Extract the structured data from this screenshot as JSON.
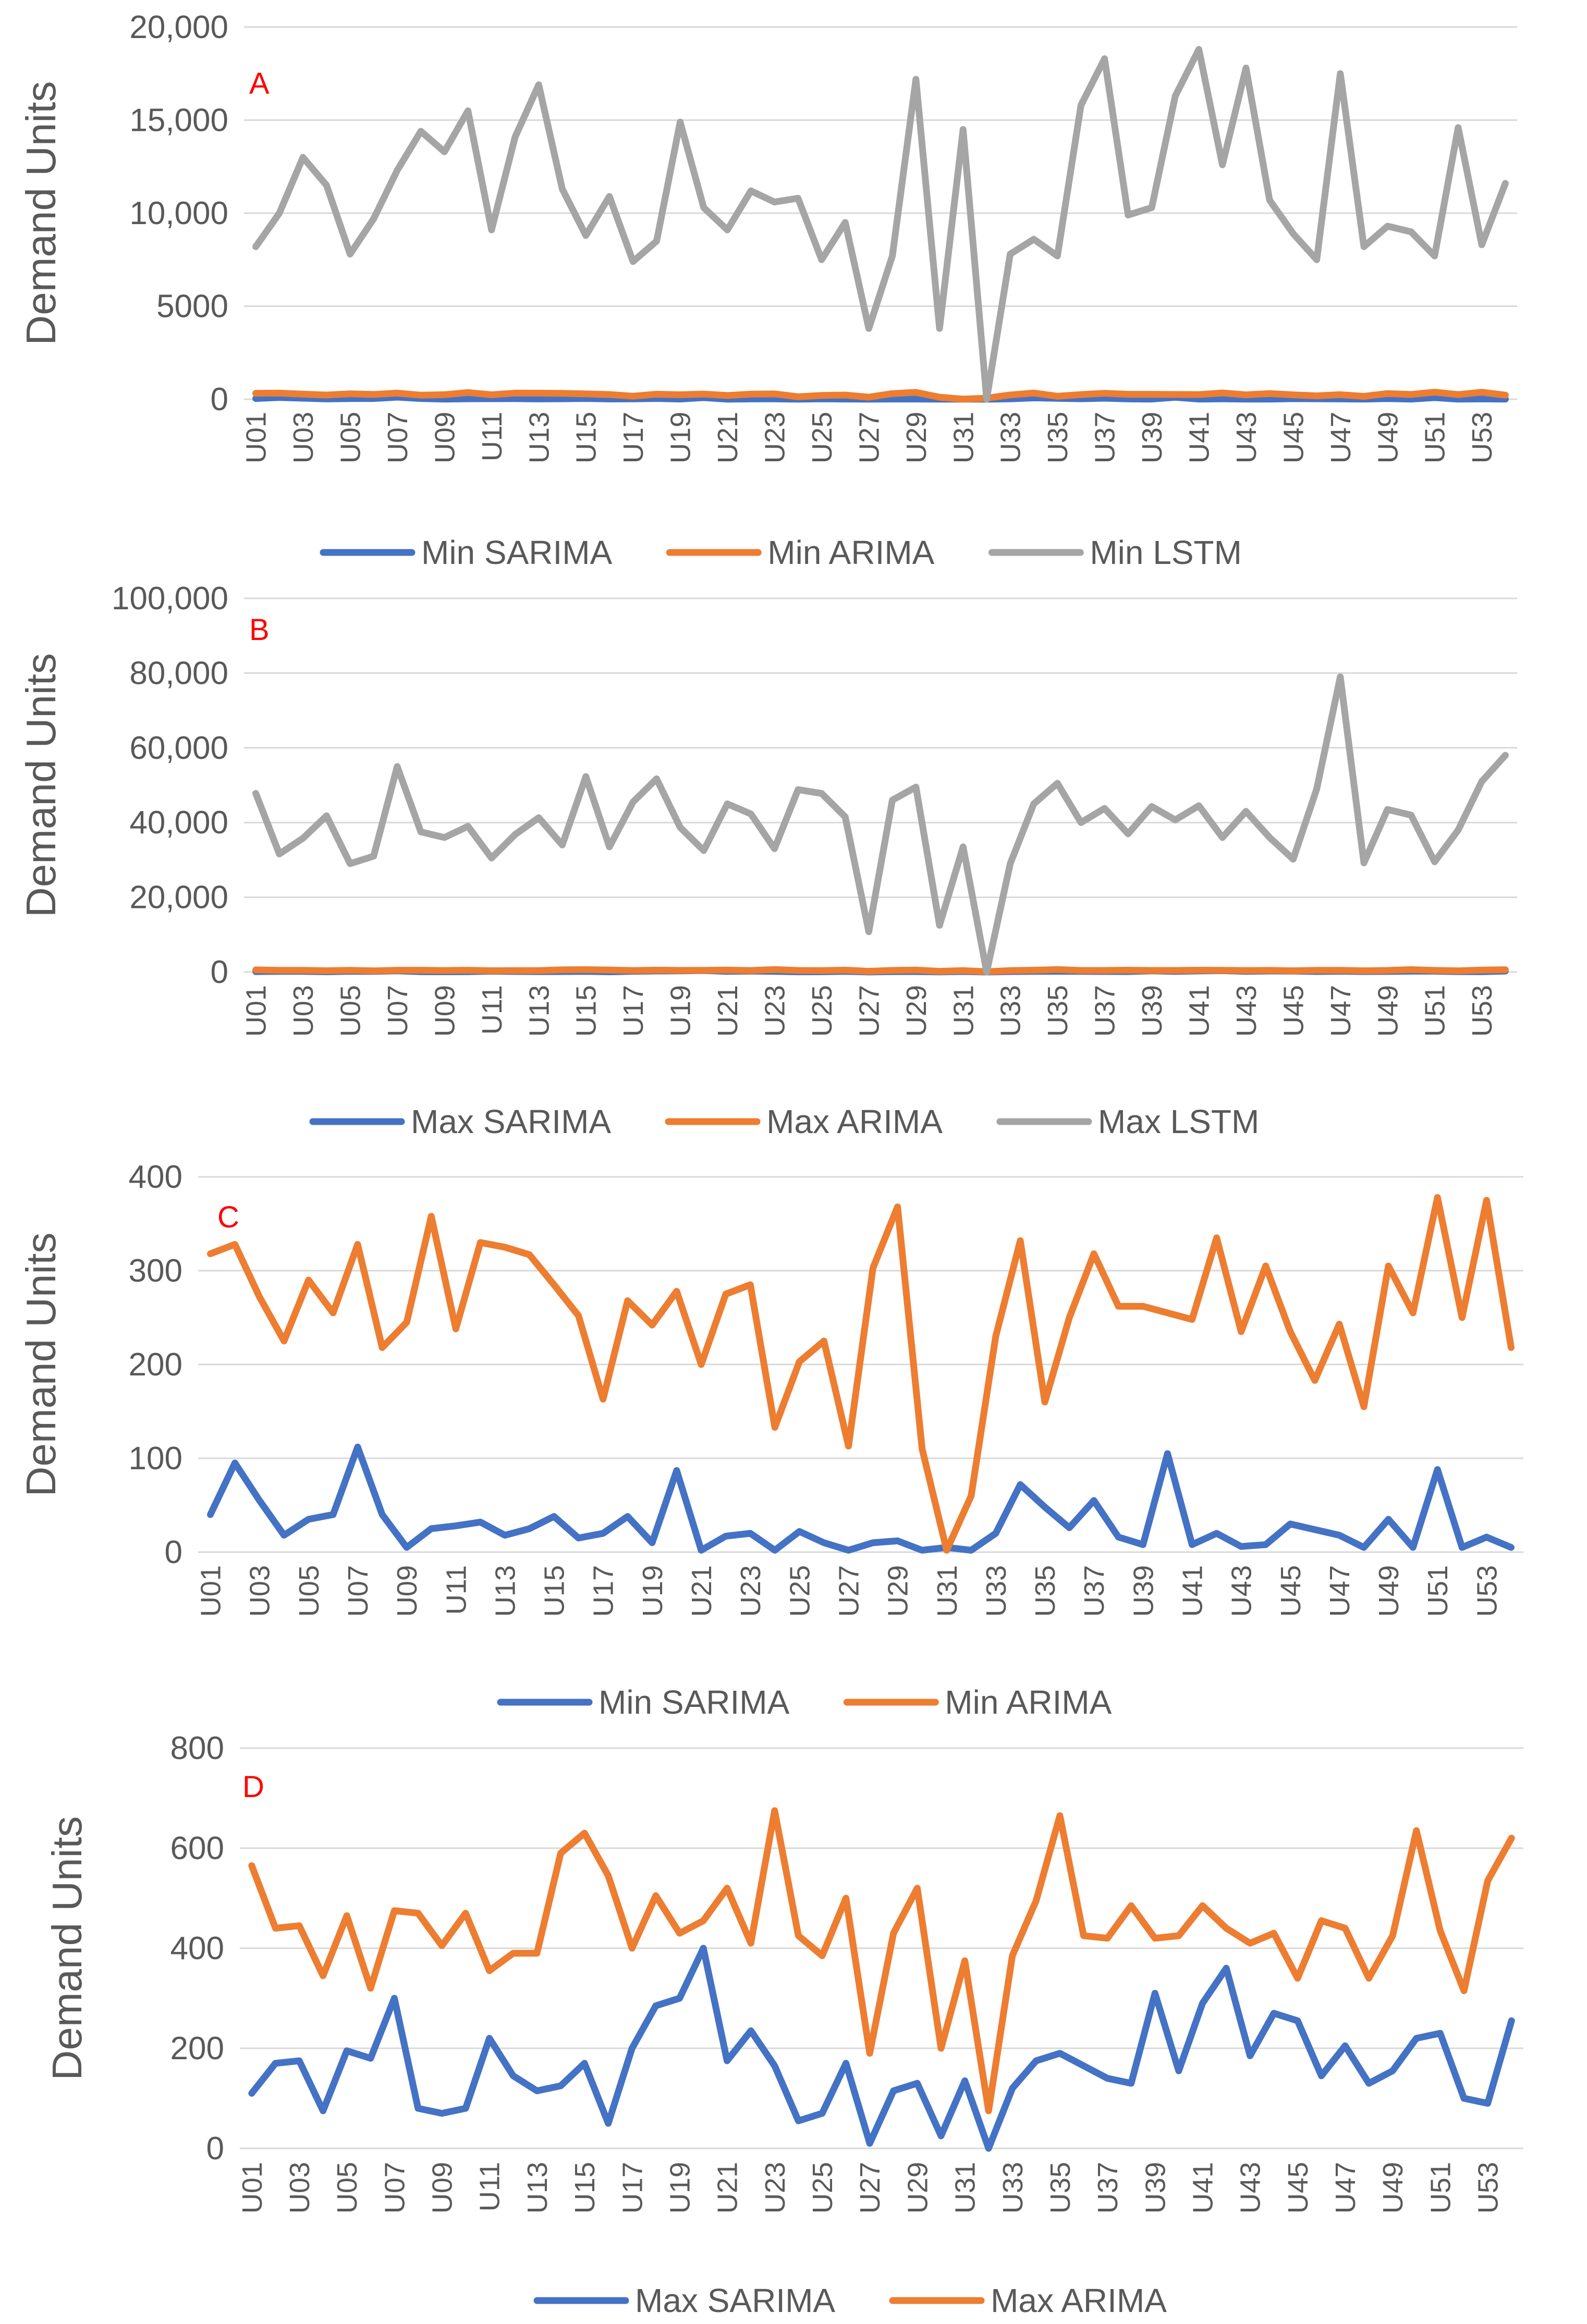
{
  "colors": {
    "sarima": "#4472c4",
    "arima": "#ed7d31",
    "lstm": "#a5a5a5",
    "panel_letter": "#ff0000",
    "grid": "#d9d9d9",
    "text": "#595959"
  },
  "chart_data": [
    {
      "type": "line",
      "panel": "A",
      "ylabel": "Demand Units",
      "ylim": [
        0,
        20000
      ],
      "yticks": [
        0,
        5000,
        10000,
        15000,
        20000
      ],
      "ytick_labels": [
        "0",
        "5000",
        "10,000",
        "15,000",
        "20,000"
      ],
      "categories": [
        "U01",
        "U02",
        "U03",
        "U04",
        "U05",
        "U06",
        "U07",
        "U08",
        "U09",
        "U10",
        "U11",
        "U12",
        "U13",
        "U14",
        "U15",
        "U16",
        "U17",
        "U18",
        "U19",
        "U20",
        "U21",
        "U22",
        "U23",
        "U24",
        "U25",
        "U26",
        "U27",
        "U28",
        "U29",
        "U30",
        "U31",
        "U32",
        "U33",
        "U34",
        "U35",
        "U36",
        "U37",
        "U38",
        "U39",
        "U40",
        "U41",
        "U42",
        "U43",
        "U44",
        "U45",
        "U46",
        "U47",
        "U48",
        "U49",
        "U50",
        "U51",
        "U52",
        "U53",
        "U54"
      ],
      "x_tick_labels": [
        "U01",
        "U03",
        "U05",
        "U07",
        "U09",
        "U11",
        "U13",
        "U15",
        "U17",
        "U19",
        "U21",
        "U23",
        "U25",
        "U27",
        "U29",
        "U31",
        "U33",
        "U35",
        "U37",
        "U39",
        "U41",
        "U43",
        "U45",
        "U47",
        "U49",
        "U51",
        "U53"
      ],
      "series": [
        {
          "name": "Min SARIMA",
          "color": "#4472c4",
          "values": [
            40,
            95,
            55,
            18,
            35,
            40,
            112,
            40,
            5,
            25,
            28,
            32,
            18,
            25,
            38,
            15,
            20,
            38,
            10,
            87,
            2,
            17,
            20,
            2,
            22,
            10,
            2,
            10,
            12,
            2,
            5,
            2,
            20,
            72,
            48,
            26,
            55,
            16,
            8,
            105,
            8,
            20,
            6,
            8,
            30,
            24,
            18,
            5,
            35,
            5,
            88,
            5,
            16,
            5
          ]
        },
        {
          "name": "Min ARIMA",
          "color": "#ed7d31",
          "values": [
            318,
            328,
            272,
            225,
            290,
            255,
            328,
            218,
            245,
            358,
            238,
            330,
            325,
            317,
            285,
            252,
            163,
            268,
            242,
            278,
            200,
            275,
            285,
            133,
            203,
            225,
            113,
            303,
            368,
            110,
            2,
            60,
            230,
            332,
            160,
            250,
            318,
            262,
            262,
            255,
            248,
            335,
            235,
            305,
            235,
            183,
            243,
            155,
            305,
            255,
            378,
            250,
            375,
            218
          ]
        },
        {
          "name": "Min LSTM",
          "color": "#a5a5a5",
          "values": [
            8200,
            10000,
            13000,
            11500,
            7800,
            9700,
            12300,
            14400,
            13300,
            15500,
            9100,
            14100,
            16900,
            11300,
            8800,
            10900,
            7400,
            8500,
            14900,
            10300,
            9100,
            11200,
            10600,
            10800,
            7500,
            9500,
            3800,
            7700,
            17200,
            3800,
            14500,
            0,
            7800,
            8600,
            7700,
            15800,
            18300,
            9900,
            10300,
            16300,
            18800,
            12600,
            17800,
            10700,
            8900,
            7500,
            17500,
            8200,
            9300,
            9000,
            7700,
            14600,
            8300,
            11600
          ]
        }
      ],
      "legend": [
        "Min SARIMA",
        "Min ARIMA",
        "Min LSTM"
      ]
    },
    {
      "type": "line",
      "panel": "B",
      "ylabel": "Demand Units",
      "ylim": [
        0,
        100000
      ],
      "yticks": [
        0,
        20000,
        40000,
        60000,
        80000,
        100000
      ],
      "ytick_labels": [
        "0",
        "20,000",
        "40,000",
        "60,000",
        "80,000",
        "100,000"
      ],
      "categories": [
        "U01",
        "U02",
        "U03",
        "U04",
        "U05",
        "U06",
        "U07",
        "U08",
        "U09",
        "U10",
        "U11",
        "U12",
        "U13",
        "U14",
        "U15",
        "U16",
        "U17",
        "U18",
        "U19",
        "U20",
        "U21",
        "U22",
        "U23",
        "U24",
        "U25",
        "U26",
        "U27",
        "U28",
        "U29",
        "U30",
        "U31",
        "U32",
        "U33",
        "U34",
        "U35",
        "U36",
        "U37",
        "U38",
        "U39",
        "U40",
        "U41",
        "U42",
        "U43",
        "U44",
        "U45",
        "U46",
        "U47",
        "U48",
        "U49",
        "U50",
        "U51",
        "U52",
        "U53",
        "U54"
      ],
      "x_tick_labels": [
        "U01",
        "U03",
        "U05",
        "U07",
        "U09",
        "U11",
        "U13",
        "U15",
        "U17",
        "U19",
        "U21",
        "U23",
        "U25",
        "U27",
        "U29",
        "U31",
        "U33",
        "U35",
        "U37",
        "U39",
        "U41",
        "U43",
        "U45",
        "U47",
        "U49",
        "U51",
        "U53"
      ],
      "series": [
        {
          "name": "Max SARIMA",
          "color": "#4472c4",
          "values": [
            110,
            170,
            175,
            75,
            195,
            180,
            300,
            80,
            70,
            80,
            220,
            145,
            115,
            125,
            170,
            50,
            200,
            285,
            300,
            400,
            175,
            235,
            165,
            55,
            70,
            170,
            10,
            115,
            130,
            25,
            135,
            0,
            120,
            175,
            190,
            165,
            140,
            130,
            310,
            155,
            290,
            360,
            185,
            270,
            255,
            145,
            205,
            130,
            155,
            220,
            230,
            100,
            90,
            255
          ]
        },
        {
          "name": "Max ARIMA",
          "color": "#ed7d31",
          "values": [
            565,
            440,
            445,
            345,
            465,
            320,
            475,
            470,
            405,
            470,
            355,
            390,
            390,
            590,
            630,
            545,
            400,
            505,
            430,
            455,
            520,
            410,
            675,
            425,
            385,
            500,
            190,
            430,
            520,
            200,
            375,
            75,
            385,
            495,
            665,
            425,
            420,
            485,
            420,
            425,
            485,
            440,
            410,
            430,
            340,
            455,
            440,
            340,
            425,
            635,
            435,
            315,
            535,
            620
          ]
        },
        {
          "name": "Max LSTM",
          "color": "#a5a5a5",
          "values": [
            47800,
            31600,
            35800,
            41800,
            29000,
            31000,
            55000,
            37500,
            36000,
            39000,
            30500,
            36800,
            41300,
            34000,
            52300,
            33500,
            45500,
            51700,
            38700,
            32500,
            45000,
            42300,
            33000,
            48800,
            47800,
            41500,
            10800,
            46000,
            49500,
            12500,
            33500,
            0,
            29000,
            45000,
            50500,
            40000,
            43800,
            37000,
            44300,
            40700,
            44500,
            36000,
            43000,
            36000,
            30200,
            49000,
            79000,
            29200,
            43500,
            42000,
            29500,
            38000,
            51000,
            58000
          ]
        }
      ],
      "legend": [
        "Max SARIMA",
        "Max ARIMA",
        "Max LSTM"
      ]
    },
    {
      "type": "line",
      "panel": "C",
      "ylabel": "Demand Units",
      "ylim": [
        0,
        400
      ],
      "yticks": [
        0,
        100,
        200,
        300,
        400
      ],
      "ytick_labels": [
        "0",
        "100",
        "200",
        "300",
        "400"
      ],
      "categories": [
        "U01",
        "U02",
        "U03",
        "U04",
        "U05",
        "U06",
        "U07",
        "U08",
        "U09",
        "U10",
        "U11",
        "U12",
        "U13",
        "U14",
        "U15",
        "U16",
        "U17",
        "U18",
        "U19",
        "U20",
        "U21",
        "U22",
        "U23",
        "U24",
        "U25",
        "U26",
        "U27",
        "U28",
        "U29",
        "U30",
        "U31",
        "U32",
        "U33",
        "U34",
        "U35",
        "U36",
        "U37",
        "U38",
        "U39",
        "U40",
        "U41",
        "U42",
        "U43",
        "U44",
        "U45",
        "U46",
        "U47",
        "U48",
        "U49",
        "U50",
        "U51",
        "U52",
        "U53",
        "U54"
      ],
      "x_tick_labels": [
        "U01",
        "U03",
        "U05",
        "U07",
        "U09",
        "U11",
        "U13",
        "U15",
        "U17",
        "U19",
        "U21",
        "U23",
        "U25",
        "U27",
        "U29",
        "U31",
        "U33",
        "U35",
        "U37",
        "U39",
        "U41",
        "U43",
        "U45",
        "U47",
        "U49",
        "U51",
        "U53"
      ],
      "series": [
        {
          "name": "Min SARIMA",
          "color": "#4472c4",
          "values": [
            40,
            95,
            55,
            18,
            35,
            40,
            112,
            40,
            5,
            25,
            28,
            32,
            18,
            25,
            38,
            15,
            20,
            38,
            10,
            87,
            2,
            17,
            20,
            2,
            22,
            10,
            2,
            10,
            12,
            2,
            5,
            2,
            20,
            72,
            48,
            26,
            55,
            16,
            8,
            105,
            8,
            20,
            6,
            8,
            30,
            24,
            18,
            5,
            35,
            5,
            88,
            5,
            16,
            5
          ]
        },
        {
          "name": "Min ARIMA",
          "color": "#ed7d31",
          "values": [
            318,
            328,
            272,
            225,
            290,
            255,
            328,
            218,
            245,
            358,
            238,
            330,
            325,
            317,
            285,
            252,
            163,
            268,
            242,
            278,
            200,
            275,
            285,
            133,
            203,
            225,
            113,
            303,
            368,
            110,
            2,
            60,
            230,
            332,
            160,
            250,
            318,
            262,
            262,
            255,
            248,
            335,
            235,
            305,
            235,
            183,
            243,
            155,
            305,
            255,
            378,
            250,
            375,
            218
          ]
        }
      ],
      "legend": [
        "Min SARIMA",
        "Min ARIMA"
      ]
    },
    {
      "type": "line",
      "panel": "D",
      "ylabel": "Demand Units",
      "ylim": [
        0,
        800
      ],
      "yticks": [
        0,
        200,
        400,
        600,
        800
      ],
      "ytick_labels": [
        "0",
        "200",
        "400",
        "600",
        "800"
      ],
      "categories": [
        "U01",
        "U02",
        "U03",
        "U04",
        "U05",
        "U06",
        "U07",
        "U08",
        "U09",
        "U10",
        "U11",
        "U12",
        "U13",
        "U14",
        "U15",
        "U16",
        "U17",
        "U18",
        "U19",
        "U20",
        "U21",
        "U22",
        "U23",
        "U24",
        "U25",
        "U26",
        "U27",
        "U28",
        "U29",
        "U30",
        "U31",
        "U32",
        "U33",
        "U34",
        "U35",
        "U36",
        "U37",
        "U38",
        "U39",
        "U40",
        "U41",
        "U42",
        "U43",
        "U44",
        "U45",
        "U46",
        "U47",
        "U48",
        "U49",
        "U50",
        "U51",
        "U52",
        "U53",
        "U54"
      ],
      "x_tick_labels": [
        "U01",
        "U03",
        "U05",
        "U07",
        "U09",
        "U11",
        "U13",
        "U15",
        "U17",
        "U19",
        "U21",
        "U23",
        "U25",
        "U27",
        "U29",
        "U31",
        "U33",
        "U35",
        "U37",
        "U39",
        "U41",
        "U43",
        "U45",
        "U47",
        "U49",
        "U51",
        "U53"
      ],
      "series": [
        {
          "name": "Max SARIMA",
          "color": "#4472c4",
          "values": [
            110,
            170,
            175,
            75,
            195,
            180,
            300,
            80,
            70,
            80,
            220,
            145,
            115,
            125,
            170,
            50,
            200,
            285,
            300,
            400,
            175,
            235,
            165,
            55,
            70,
            170,
            10,
            115,
            130,
            25,
            135,
            0,
            120,
            175,
            190,
            165,
            140,
            130,
            310,
            155,
            290,
            360,
            185,
            270,
            255,
            145,
            205,
            130,
            155,
            220,
            230,
            100,
            90,
            255
          ]
        },
        {
          "name": "Max ARIMA",
          "color": "#ed7d31",
          "values": [
            565,
            440,
            445,
            345,
            465,
            320,
            475,
            470,
            405,
            470,
            355,
            390,
            390,
            590,
            630,
            545,
            400,
            505,
            430,
            455,
            520,
            410,
            675,
            425,
            385,
            500,
            190,
            430,
            520,
            200,
            375,
            75,
            385,
            495,
            665,
            425,
            420,
            485,
            420,
            425,
            485,
            440,
            410,
            430,
            340,
            455,
            440,
            340,
            425,
            635,
            435,
            315,
            535,
            620
          ]
        }
      ],
      "legend": [
        "Max SARIMA",
        "Max ARIMA"
      ]
    }
  ]
}
